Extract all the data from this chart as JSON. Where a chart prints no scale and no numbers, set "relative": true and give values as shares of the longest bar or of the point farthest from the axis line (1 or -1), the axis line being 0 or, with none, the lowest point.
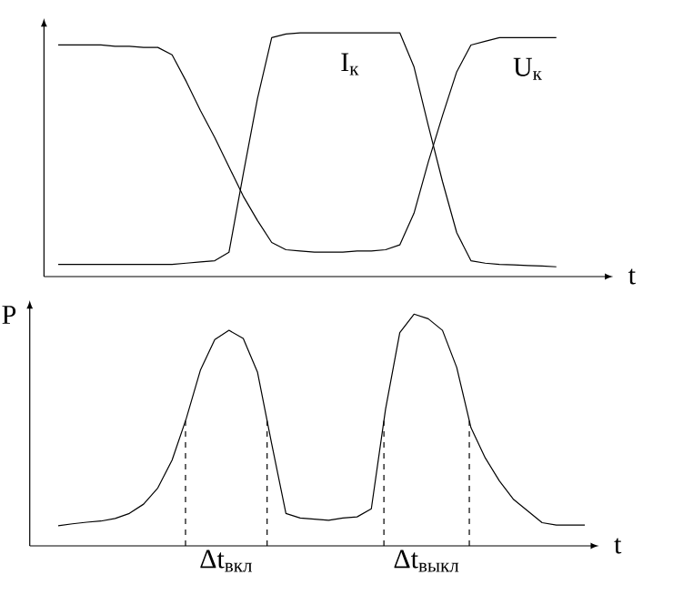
{
  "chart_data": [
    {
      "type": "line",
      "relative": true,
      "xlabel": "t",
      "marker": "none",
      "line_style": "solid",
      "color": "#000000",
      "categories": [
        null,
        null,
        null,
        null,
        null,
        null,
        null,
        null,
        null,
        null,
        null,
        null,
        null,
        null,
        null,
        null,
        null,
        null,
        null,
        null,
        null,
        null,
        null,
        null,
        null,
        null,
        null,
        null,
        null,
        null,
        null,
        null,
        null,
        null,
        null,
        null
      ],
      "series": [
        {
          "name": "U$_{к}$",
          "values": [
            0.95,
            0.95,
            0.95,
            0.95,
            0.945,
            0.945,
            0.94,
            0.94,
            0.91,
            0.8,
            0.68,
            0.57,
            0.45,
            0.33,
            0.23,
            0.14,
            0.11,
            0.105,
            0.1,
            0.1,
            0.1,
            0.105,
            0.105,
            0.11,
            0.13,
            0.26,
            0.47,
            0.66,
            0.84,
            0.95,
            0.965,
            0.98,
            0.98,
            0.98,
            0.98,
            0.98
          ]
        },
        {
          "name": "I$_{к}$",
          "values": [
            0.05,
            0.05,
            0.05,
            0.05,
            0.05,
            0.05,
            0.05,
            0.05,
            0.05,
            0.055,
            0.06,
            0.065,
            0.1,
            0.42,
            0.73,
            0.98,
            0.995,
            1,
            1,
            1,
            1,
            1,
            1,
            1,
            1,
            0.86,
            0.62,
            0.39,
            0.18,
            0.065,
            0.055,
            0.05,
            0.048,
            0.045,
            0.043,
            0.04
          ]
        }
      ]
    },
    {
      "type": "line",
      "relative": true,
      "xlabel": "t",
      "ylabel": "P",
      "marker": "none",
      "line_style": "solid",
      "color": "#000000",
      "categories": [
        null,
        null,
        null,
        null,
        null,
        null,
        null,
        null,
        null,
        null,
        null,
        null,
        null,
        null,
        null,
        null,
        null,
        null,
        null,
        null,
        null,
        null,
        null,
        null,
        null,
        null,
        null,
        null,
        null,
        null,
        null,
        null,
        null,
        null,
        null,
        null,
        null,
        null
      ],
      "values": [
        0.087,
        0.095,
        0.102,
        0.107,
        0.118,
        0.14,
        0.18,
        0.25,
        0.37,
        0.55,
        0.76,
        0.89,
        0.93,
        0.895,
        0.75,
        0.44,
        0.14,
        0.12,
        0.115,
        0.11,
        0.12,
        0.125,
        0.16,
        0.59,
        0.92,
        1,
        0.98,
        0.93,
        0.77,
        0.51,
        0.38,
        0.28,
        0.2,
        0.15,
        0.1,
        0.09,
        0.09,
        0.09
      ],
      "annotations": [
        "Δt$_{вкл}$",
        "Δt$_{выкл}$"
      ]
    }
  ]
}
